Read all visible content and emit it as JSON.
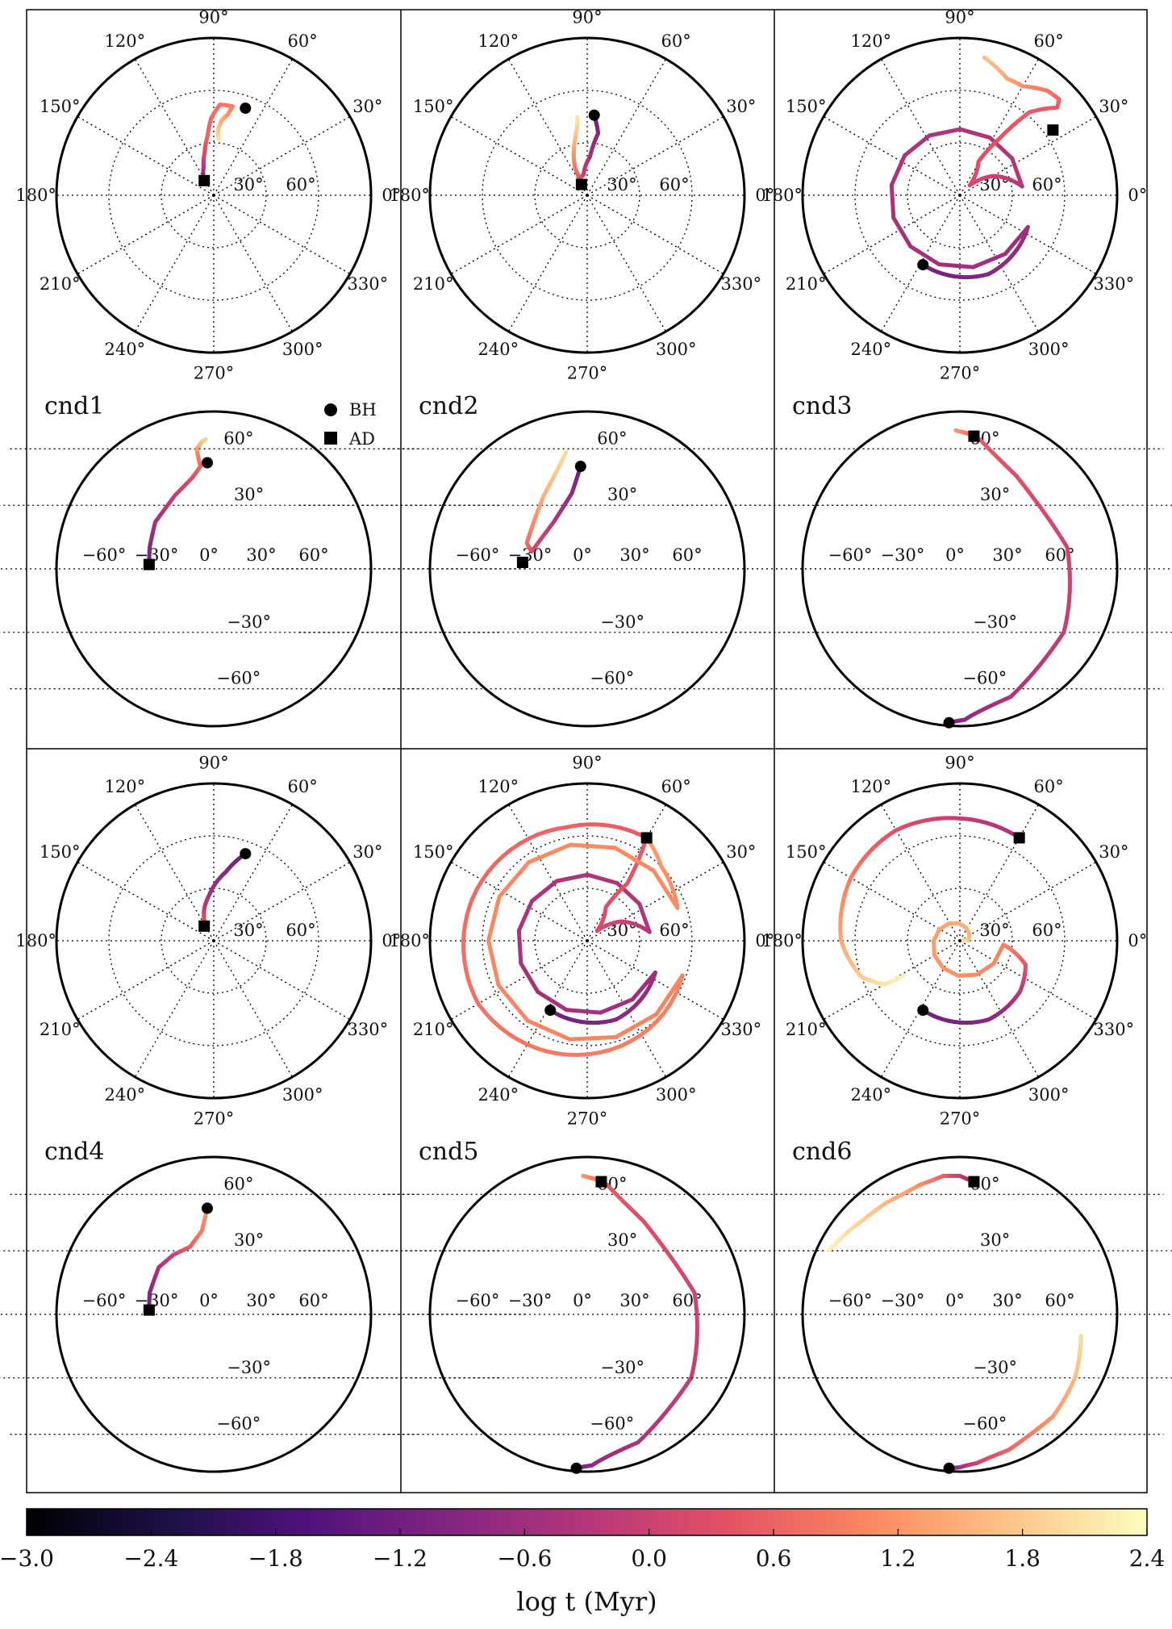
{
  "chart_data": {
    "type": "scatter",
    "description_units": "trajectories of spin directions (BH = black hole, AD = accretion disc) on polar (top) and Mollweide (bottom) projections; color = log t (Myr)",
    "polar_theta_ticks": [
      "90°",
      "60°",
      "30°",
      "0°",
      "330°",
      "300°",
      "270°",
      "240°",
      "210°",
      "180°",
      "150°",
      "120°"
    ],
    "polar_theta_values": [
      90,
      60,
      30,
      0,
      330,
      300,
      270,
      240,
      210,
      180,
      150,
      120
    ],
    "polar_radial_ticks": [
      "60°",
      "30°"
    ],
    "moll_lon_ticks": [
      "−60°",
      "−30°",
      "0°",
      "30°",
      "60°"
    ],
    "moll_lat_ticks": [
      "60°",
      "30°",
      "−30°",
      "−60°"
    ],
    "legend": {
      "items": [
        {
          "label": "BH",
          "marker": "circle"
        },
        {
          "label": "AD",
          "marker": "square"
        }
      ],
      "placement": "inside panel cnd1, near the top-right corner of the lower plot"
    },
    "colorbar": {
      "label": "log t (Myr)",
      "vmin": -3.0,
      "vmax": 2.4,
      "ticks": [
        "−3.0",
        "−2.4",
        "−1.8",
        "−1.2",
        "−0.6",
        "0.0",
        "0.6",
        "1.2",
        "1.8",
        "2.4"
      ],
      "tick_values": [
        -3.0,
        -2.4,
        -1.8,
        -1.2,
        -0.6,
        0.0,
        0.6,
        1.2,
        1.8,
        2.4
      ],
      "colormap": "magma",
      "stops": [
        "#000004",
        "#1c1044",
        "#4f127b",
        "#812581",
        "#b5367a",
        "#e55064",
        "#fb8761",
        "#fec287",
        "#fcfdbf"
      ]
    },
    "panels": [
      {
        "label": "cnd1",
        "polar": {
          "bh": [
            70,
            53
          ],
          "ad": [
            123,
            10
          ],
          "path": [
            [
              123,
              10,
              -1.0
            ],
            [
              110,
              17,
              -0.4
            ],
            [
              102,
              25,
              0.2
            ],
            [
              96,
              34,
              0.6
            ],
            [
              92,
              44,
              0.7
            ],
            [
              86,
              52,
              0.8
            ],
            [
              78,
              52,
              0.9
            ],
            [
              80,
              47,
              1.1
            ],
            [
              84,
              43,
              1.4
            ],
            [
              86,
              38,
              1.7
            ],
            [
              86,
              34,
              1.9
            ],
            [
              85,
              32,
              2.1
            ]
          ]
        },
        "moll": {
          "bh": [
            -5,
            52
          ],
          "ad": [
            -37,
            2
          ],
          "path": [
            [
              -37,
              2,
              -1.2
            ],
            [
              -37,
              10,
              -0.9
            ],
            [
              -35,
              22,
              -0.5
            ],
            [
              -25,
              35,
              -0.1
            ],
            [
              -15,
              44,
              0.3
            ],
            [
              -10,
              50,
              0.6
            ],
            [
              -13,
              56,
              0.9
            ],
            [
              -15,
              60,
              1.2
            ],
            [
              -12,
              64,
              1.6
            ],
            [
              -8,
              66,
              1.9
            ]
          ]
        }
      },
      {
        "label": "cnd2",
        "polar": {
          "bh": [
            85,
            46
          ],
          "ad": [
            118,
            7
          ],
          "path": [
            [
              85,
              46,
              -1.3
            ],
            [
              80,
              36,
              -0.9
            ],
            [
              86,
              22,
              -0.5
            ],
            [
              100,
              12,
              -0.1
            ],
            [
              115,
              10,
              0.3
            ],
            [
              114,
              17,
              0.8
            ],
            [
              108,
              25,
              1.2
            ],
            [
              102,
              33,
              1.6
            ],
            [
              98,
              40,
              1.9
            ],
            [
              97,
              45,
              2.1
            ]
          ]
        },
        "moll": {
          "bh": [
            -5,
            50
          ],
          "ad": [
            -37,
            3
          ],
          "path": [
            [
              -5,
              50,
              -1.3
            ],
            [
              -10,
              36,
              -0.8
            ],
            [
              -20,
              22,
              -0.3
            ],
            [
              -32,
              8,
              0.2
            ],
            [
              -35,
              12,
              0.7
            ],
            [
              -32,
              22,
              1.1
            ],
            [
              -28,
              35,
              1.5
            ],
            [
              -22,
              48,
              1.8
            ],
            [
              -18,
              58,
              2.0
            ]
          ]
        }
      },
      {
        "label": "cnd3",
        "polar": {
          "bh": [
            242,
            45
          ],
          "ad": [
            35,
            65
          ],
          "path": [
            [
              242,
              45,
              -1.2
            ],
            [
              290,
              48,
              -0.9
            ],
            [
              335,
              43,
              -0.6
            ],
            [
              8,
              36,
              -0.3
            ],
            [
              30,
              22,
              0.0
            ],
            [
              45,
              8,
              0.2
            ],
            [
              61,
              22,
              0.3
            ],
            [
              55,
              40,
              0.4
            ],
            [
              50,
              62,
              0.5
            ],
            [
              42,
              75,
              0.5
            ],
            [
              44,
              79,
              0.6
            ],
            [
              50,
              78,
              0.8
            ],
            [
              60,
              72,
              1.1
            ],
            [
              68,
              72,
              1.4
            ],
            [
              80,
              80,
              1.7
            ]
          ]
        },
        "moll": {
          "bh": [
            -30,
            -85
          ],
          "ad": [
            15,
            68
          ],
          "path": [
            [
              -30,
              -85,
              -1.2
            ],
            [
              10,
              -82,
              -0.8
            ],
            [
              50,
              -65,
              -0.4
            ],
            [
              65,
              -30,
              -0.1
            ],
            [
              62,
              10,
              0.1
            ],
            [
              40,
              45,
              0.3
            ],
            [
              20,
              66,
              0.5
            ],
            [
              8,
              70,
              0.8
            ],
            [
              -5,
              72,
              1.2
            ]
          ]
        }
      },
      {
        "label": "cnd4",
        "polar": {
          "bh": [
            70,
            53
          ],
          "ad": [
            123,
            10
          ],
          "path": [
            [
              70,
              53,
              -1.3
            ],
            [
              80,
              40,
              -0.9
            ],
            [
              96,
              26,
              -0.5
            ],
            [
              108,
              18,
              -0.1
            ],
            [
              116,
              12,
              0.3
            ],
            [
              123,
              10,
              0.6
            ]
          ]
        },
        "moll": {
          "bh": [
            -5,
            52
          ],
          "ad": [
            -37,
            2
          ],
          "path": [
            [
              -37,
              2,
              -1.3
            ],
            [
              -37,
              10,
              -0.9
            ],
            [
              -33,
              22,
              -0.4
            ],
            [
              -25,
              28,
              0.0
            ],
            [
              -15,
              32,
              0.5
            ],
            [
              -8,
              40,
              0.9
            ],
            [
              -5,
              52,
              1.2
            ]
          ]
        }
      },
      {
        "label": "cnd5",
        "polar": {
          "bh": [
            242,
            45
          ],
          "ad": [
            60,
            68
          ],
          "path": [
            [
              242,
              45,
              -1.2
            ],
            [
              290,
              48,
              -0.9
            ],
            [
              335,
              43,
              -0.6
            ],
            [
              8,
              36,
              -0.3
            ],
            [
              30,
              22,
              0.0
            ],
            [
              45,
              8,
              0.2
            ],
            [
              61,
              22,
              0.3
            ],
            [
              55,
              40,
              0.4
            ],
            [
              60,
              68,
              0.5
            ],
            [
              100,
              66,
              0.6
            ],
            [
              160,
              70,
              0.7
            ],
            [
              210,
              72,
              0.8
            ],
            [
              270,
              65,
              0.9
            ],
            [
              340,
              58,
              1.0
            ],
            [
              20,
              55,
              1.1
            ],
            [
              45,
              60,
              1.2
            ],
            [
              60,
              68,
              1.3
            ]
          ]
        },
        "moll": {
          "bh": [
            -30,
            -85
          ],
          "ad": [
            15,
            68
          ],
          "path": [
            [
              -30,
              -85,
              -1.2
            ],
            [
              10,
              -82,
              -0.8
            ],
            [
              50,
              -65,
              -0.4
            ],
            [
              65,
              -30,
              -0.1
            ],
            [
              62,
              10,
              0.1
            ],
            [
              40,
              45,
              0.3
            ],
            [
              20,
              66,
              0.5
            ],
            [
              8,
              70,
              0.8
            ],
            [
              -5,
              72,
              1.2
            ]
          ]
        }
      },
      {
        "label": "cnd6",
        "polar": {
          "bh": [
            242,
            45
          ],
          "ad": [
            60,
            68
          ],
          "path": [
            [
              242,
              45,
              -1.2
            ],
            [
              290,
              48,
              -0.9
            ],
            [
              320,
              45,
              -0.3
            ],
            [
              340,
              40,
              0.4
            ],
            [
              355,
              25,
              1.0
            ],
            [
              5,
              5,
              1.6
            ],
            [
              10,
              2,
              2.0
            ]
          ]
        },
        "polar2": [
          [
            60,
            68,
            -0.5
          ],
          [
            90,
            70,
            -0.1
          ],
          [
            120,
            73,
            0.3
          ],
          [
            150,
            72,
            0.9
          ],
          [
            180,
            68,
            1.4
          ],
          [
            200,
            60,
            1.8
          ],
          [
            210,
            50,
            2.1
          ],
          [
            212,
            38,
            2.3
          ]
        ],
        "moll": {
          "bh": [
            -30,
            -85
          ],
          "ad": [
            15,
            68
          ],
          "path": [
            [
              -30,
              -85,
              -1.2
            ],
            [
              0,
              -84,
              -0.6
            ],
            [
              30,
              -80,
              0.0
            ],
            [
              55,
              -70,
              0.6
            ],
            [
              70,
              -50,
              1.2
            ],
            [
              72,
              -30,
              1.6
            ],
            [
              70,
              -10,
              2.0
            ]
          ]
        },
        "moll2": [
          [
            15,
            68,
            -0.8
          ],
          [
            0,
            72,
            -0.2
          ],
          [
            -20,
            72,
            0.5
          ],
          [
            -40,
            66,
            1.1
          ],
          [
            -60,
            55,
            1.6
          ],
          [
            -75,
            40,
            2.0
          ],
          [
            -82,
            30,
            2.3
          ]
        ]
      }
    ]
  }
}
